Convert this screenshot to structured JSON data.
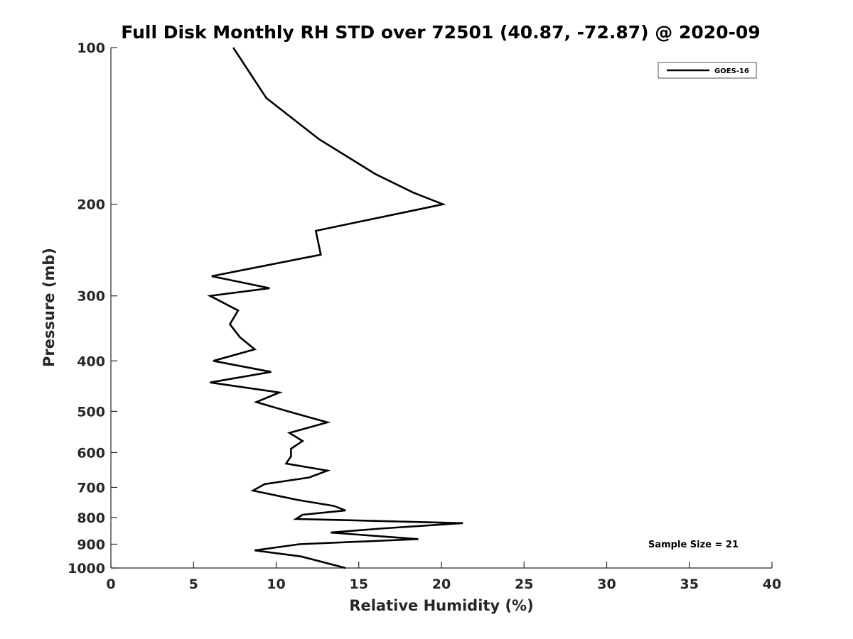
{
  "chart_data": {
    "type": "line",
    "title": "Full Disk Monthly RH STD over 72501 (40.87, -72.87) @ 2020-09",
    "xlabel": "Relative Humidity (%)",
    "ylabel": "Pressure (mb)",
    "xlim": [
      0,
      40
    ],
    "ylim": [
      100,
      1000
    ],
    "y_scale": "log",
    "y_reversed": true,
    "grid": false,
    "legend_position": "top-right",
    "x_ticks": [
      "0",
      "5",
      "10",
      "15",
      "20",
      "25",
      "30",
      "35",
      "40"
    ],
    "y_ticks": [
      "100",
      "200",
      "300",
      "400",
      "500",
      "600",
      "700",
      "800",
      "900",
      "1000"
    ],
    "series": [
      {
        "name": "GOES-16",
        "color": "#000000",
        "points": [
          [
            7.4,
            100
          ],
          [
            9.4,
            125
          ],
          [
            12.6,
            150
          ],
          [
            16.0,
            175
          ],
          [
            18.3,
            190
          ],
          [
            20.1,
            200
          ],
          [
            12.4,
            225
          ],
          [
            12.7,
            250
          ],
          [
            6.1,
            275
          ],
          [
            9.6,
            290
          ],
          [
            6.0,
            300
          ],
          [
            7.7,
            320
          ],
          [
            7.2,
            340
          ],
          [
            7.8,
            360
          ],
          [
            8.7,
            380
          ],
          [
            6.2,
            400
          ],
          [
            9.7,
            420
          ],
          [
            6.0,
            440
          ],
          [
            10.2,
            460
          ],
          [
            8.8,
            480
          ],
          [
            10.7,
            500
          ],
          [
            13.1,
            525
          ],
          [
            10.8,
            550
          ],
          [
            11.6,
            570
          ],
          [
            10.9,
            590
          ],
          [
            10.9,
            610
          ],
          [
            10.6,
            630
          ],
          [
            13.1,
            650
          ],
          [
            12.0,
            670
          ],
          [
            9.3,
            690
          ],
          [
            8.6,
            710
          ],
          [
            11.3,
            740
          ],
          [
            13.5,
            760
          ],
          [
            14.2,
            775
          ],
          [
            11.6,
            790
          ],
          [
            11.2,
            805
          ],
          [
            21.3,
            820
          ],
          [
            16.3,
            840
          ],
          [
            13.3,
            855
          ],
          [
            18.6,
            880
          ],
          [
            11.4,
            900
          ],
          [
            8.7,
            925
          ],
          [
            11.5,
            950
          ],
          [
            14.2,
            1000
          ]
        ]
      }
    ],
    "annotation": "Sample Size = 21"
  }
}
